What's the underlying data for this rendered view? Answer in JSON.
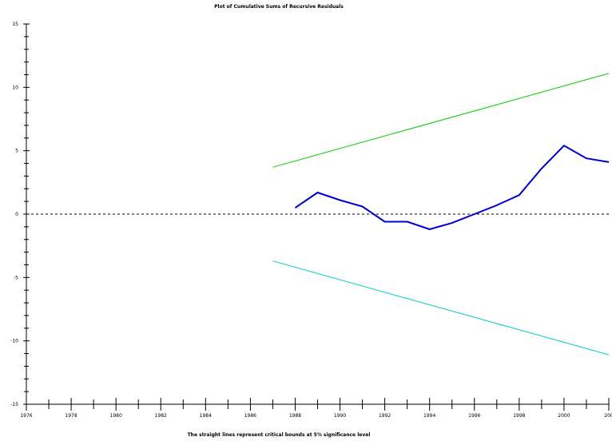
{
  "chart_data": {
    "type": "line",
    "title": "Plot of Cumulative Sums of Recursive Residuals",
    "caption": "The straight lines represent critical bounds at 5% significance level",
    "x_tick_labels": [
      "1976",
      "1978",
      "1980",
      "1982",
      "1984",
      "1986",
      "1988",
      "1990",
      "1992",
      "1994",
      "1996",
      "1998",
      "2000",
      "200"
    ],
    "y_tick_labels": [
      "15",
      "10",
      "5",
      "0",
      "-5",
      "-10",
      "-15"
    ],
    "xlim": [
      1976,
      2002
    ],
    "ylim": [
      -15,
      15
    ],
    "zero_reference_line": "dotted",
    "series": [
      {
        "color": "#0000cc",
        "x": [
          1988,
          1989,
          1990,
          1991,
          1992,
          1993,
          1994,
          1995,
          1996,
          1997,
          1998,
          1999,
          2000,
          2001,
          2002
        ],
        "values": [
          0.5,
          1.7,
          1.1,
          0.6,
          -0.6,
          -0.6,
          -1.2,
          -0.7,
          0.0,
          0.7,
          1.5,
          3.6,
          5.4,
          4.4,
          4.1
        ]
      },
      {
        "color": "#00cc00",
        "x": [
          1987,
          2002
        ],
        "values": [
          3.7,
          11.1
        ]
      },
      {
        "color": "#00cccc",
        "x": [
          1987,
          2002
        ],
        "values": [
          -3.7,
          -11.1
        ]
      }
    ]
  }
}
